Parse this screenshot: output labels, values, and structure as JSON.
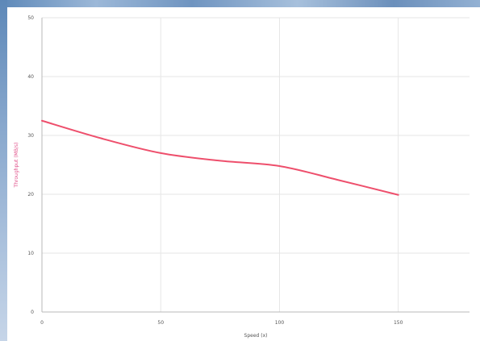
{
  "chart_data": {
    "type": "line",
    "title": "",
    "xlabel": "Speed (x)",
    "ylabel": "Throughput (MB/s)",
    "xlim": [
      0,
      180
    ],
    "ylim": [
      0,
      50
    ],
    "xticks": [
      0,
      50,
      100,
      150
    ],
    "yticks": [
      0,
      10,
      20,
      30,
      40,
      50
    ],
    "xtick_labels": [
      "0",
      "50",
      "100",
      "150"
    ],
    "ytick_labels": [
      "0",
      "10",
      "20",
      "30",
      "40",
      "50"
    ],
    "grid": true,
    "series": [
      {
        "color": "#ee4f6c",
        "x": [
          0,
          25,
          50,
          75,
          100,
          125,
          150
        ],
        "y": [
          32.5,
          29.5,
          27,
          25.7,
          24.8,
          22.4,
          19.9
        ]
      }
    ]
  },
  "colors": {
    "accent": "#ee4f6c",
    "ylabel_color": "#e0508a",
    "grid": "#e6e6e6",
    "axis": "#b8b8b8"
  }
}
